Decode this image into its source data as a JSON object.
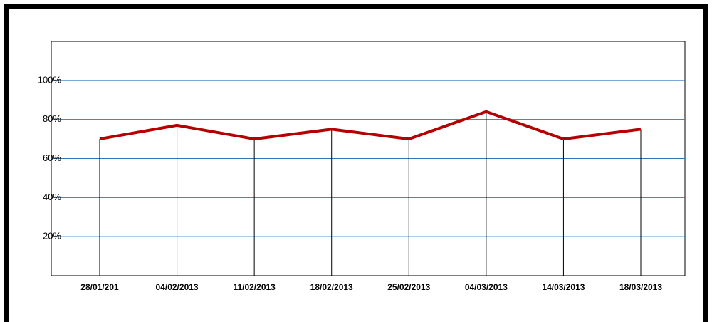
{
  "chart_data": {
    "type": "line",
    "categories": [
      "28/01/201",
      "04/02/2013",
      "11/02/2013",
      "18/02/2013",
      "25/02/2013",
      "04/03/2013",
      "14/03/2013",
      "18/03/2013"
    ],
    "series": [
      {
        "color": "#b40000",
        "values": [
          70,
          77,
          70,
          75,
          70,
          84,
          70,
          75
        ]
      }
    ],
    "ylim": [
      0,
      120
    ],
    "yticks": [
      {
        "value": 20,
        "label": "20%"
      },
      {
        "value": 40,
        "label": "40%"
      },
      {
        "value": 60,
        "label": "60%"
      },
      {
        "value": 80,
        "label": "80%"
      },
      {
        "value": 100,
        "label": "100%"
      }
    ],
    "grid": true,
    "grid_color": "#2e75b6"
  }
}
